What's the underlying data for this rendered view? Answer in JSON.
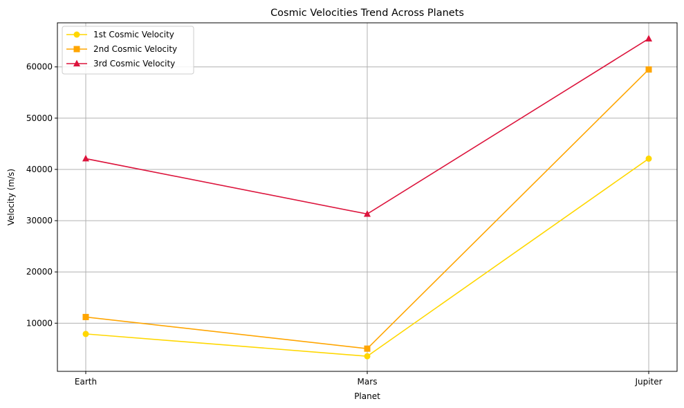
{
  "chart_data": {
    "type": "line",
    "title": "Cosmic Velocities Trend Across Planets",
    "xlabel": "Planet",
    "ylabel": "Velocity (m/s)",
    "categories": [
      "Earth",
      "Mars",
      "Jupiter"
    ],
    "ylim": [
      600,
      68600
    ],
    "yticks": [
      10000,
      20000,
      30000,
      40000,
      50000,
      60000
    ],
    "grid": true,
    "legend_position": "top-left",
    "series": [
      {
        "name": "1st Cosmic Velocity",
        "values": [
          7900,
          3550,
          42100
        ],
        "color": "#FFD700",
        "marker": "circle"
      },
      {
        "name": "2nd Cosmic Velocity",
        "values": [
          11200,
          5030,
          59500
        ],
        "color": "#FFA500",
        "marker": "square"
      },
      {
        "name": "3rd Cosmic Velocity",
        "values": [
          42100,
          31300,
          65500
        ],
        "color": "#DC143C",
        "marker": "triangle"
      }
    ]
  }
}
